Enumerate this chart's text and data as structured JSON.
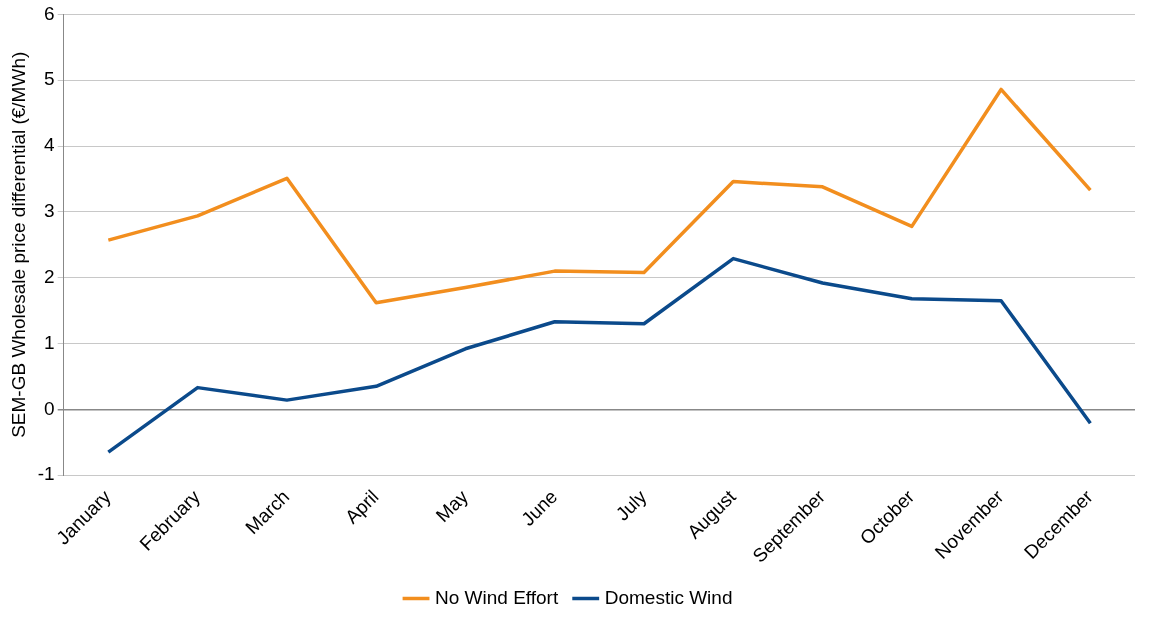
{
  "chart_data": {
    "type": "line",
    "ylabel": "SEM-GB Wholesale price differential (€/MWh)",
    "categories": [
      "January",
      "February",
      "March",
      "April",
      "May",
      "June",
      "July",
      "August",
      "September",
      "October",
      "November",
      "December"
    ],
    "series": [
      {
        "name": "No Wind Effort",
        "color": "#f28e1e",
        "values": [
          2.57,
          2.94,
          3.51,
          1.62,
          1.85,
          2.1,
          2.08,
          3.46,
          3.38,
          2.78,
          4.86,
          3.33
        ]
      },
      {
        "name": "Domestic Wind",
        "color": "#0b4a8b",
        "values": [
          -0.65,
          0.33,
          0.14,
          0.35,
          0.92,
          1.33,
          1.3,
          2.29,
          1.92,
          1.68,
          1.65,
          -0.21
        ]
      }
    ],
    "ylim": [
      -1,
      6
    ],
    "yticks": [
      -1,
      0,
      1,
      2,
      3,
      4,
      5,
      6
    ],
    "grid": "y",
    "legend": "bottom",
    "marker": "none",
    "line_style": "solid"
  }
}
